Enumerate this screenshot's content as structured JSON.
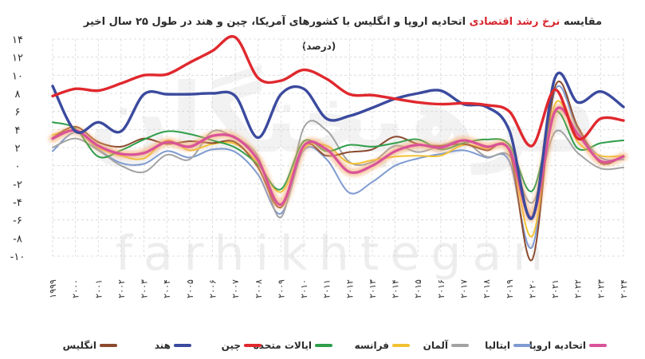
{
  "chart_data": {
    "type": "line",
    "title_parts": {
      "before": "مقایسه",
      "highlight": "نرخ رشد اقتصادی",
      "after": "اتحادیه اروپا و انگلیس با کشورهای آمریکا، چین و هند در طول ۲۵ سال اخیر"
    },
    "subtitle": "(درصد)",
    "watermark_fa": "فرهیختگان",
    "watermark_en": "farhikhtegan",
    "x": [
      "۱۹۹۹",
      "۲۰۰۰",
      "۲۰۰۱",
      "۲۰۰۲",
      "۲۰۰۳",
      "۲۰۰۴",
      "۲۰۰۵",
      "۲۰۰۶",
      "۲۰۰۷",
      "۲۰۰۸",
      "۲۰۰۹",
      "۲۰۱۰",
      "۲۰۱۱",
      "۲۰۱۲",
      "۲۰۱۳",
      "۲۰۱۴",
      "۲۰۱۵",
      "۲۰۱۶",
      "۲۰۱۷",
      "۲۰۱۸",
      "۲۰۱۹",
      "۲۰۲۰",
      "۲۰۲۱",
      "۲۰۲۲",
      "۲۰۲۳",
      "۲۰۲۴"
    ],
    "yticks": [
      {
        "value": 14,
        "label": "۱۴"
      },
      {
        "value": 12,
        "label": "۱۲"
      },
      {
        "value": 10,
        "label": "۱۰"
      },
      {
        "value": 8,
        "label": "۸"
      },
      {
        "value": 6,
        "label": "۶"
      },
      {
        "value": 4,
        "label": "۴"
      },
      {
        "value": 2,
        "label": "۲"
      },
      {
        "value": 0,
        "label": "۰"
      },
      {
        "value": -2,
        "label": "-۲"
      },
      {
        "value": -4,
        "label": "-۴"
      },
      {
        "value": -6,
        "label": "-۶"
      },
      {
        "value": -8,
        "label": "-۸"
      },
      {
        "value": -10,
        "label": "-۱۰"
      }
    ],
    "ylim": [
      -10,
      14
    ],
    "grid": true,
    "legend_position": "bottom",
    "series": [
      {
        "name": "اتحادیه اروپا",
        "color": "#d9539a",
        "glow": true,
        "values": [
          3.0,
          3.9,
          2.2,
          1.3,
          1.4,
          2.6,
          2.1,
          3.3,
          3.1,
          0.6,
          -4.3,
          2.2,
          1.8,
          -0.7,
          0.0,
          1.6,
          2.3,
          2.0,
          2.8,
          2.1,
          1.8,
          -5.7,
          6.0,
          3.5,
          0.5,
          1.0
        ]
      },
      {
        "name": "ایتالیا",
        "color": "#7f9bd1",
        "glow": false,
        "values": [
          1.6,
          3.7,
          1.8,
          0.3,
          0.2,
          1.6,
          0.9,
          1.8,
          1.5,
          -1.0,
          -5.3,
          1.7,
          0.7,
          -3.0,
          -1.8,
          0.0,
          0.8,
          1.3,
          1.7,
          0.9,
          0.5,
          -9.0,
          8.3,
          4.0,
          0.9,
          0.7
        ]
      },
      {
        "name": "آلمان",
        "color": "#a3a3a3",
        "glow": false,
        "values": [
          2.0,
          3.0,
          1.7,
          0.0,
          -0.7,
          1.2,
          0.7,
          3.8,
          3.0,
          1.0,
          -5.7,
          4.2,
          3.9,
          0.4,
          0.4,
          2.2,
          1.5,
          2.2,
          2.7,
          1.0,
          1.1,
          -4.1,
          3.7,
          1.4,
          -0.3,
          -0.2
        ]
      },
      {
        "name": "فرانسه",
        "color": "#f2c233",
        "glow": false,
        "values": [
          3.4,
          3.9,
          2.0,
          1.1,
          0.8,
          2.8,
          1.7,
          2.4,
          2.4,
          0.3,
          -2.9,
          1.9,
          2.2,
          0.3,
          0.6,
          1.0,
          1.1,
          1.1,
          2.3,
          1.9,
          1.8,
          -7.8,
          6.8,
          2.6,
          1.1,
          1.1
        ]
      },
      {
        "name": "ایالات متحده",
        "color": "#2e9e4a",
        "glow": false,
        "values": [
          4.8,
          4.1,
          1.0,
          1.7,
          2.9,
          3.8,
          3.5,
          2.8,
          2.0,
          0.1,
          -2.6,
          2.7,
          1.6,
          2.3,
          2.1,
          2.5,
          2.9,
          1.8,
          2.5,
          2.9,
          2.3,
          -2.8,
          5.9,
          1.9,
          2.5,
          2.8
        ]
      },
      {
        "name": "چین",
        "color": "#e0282e",
        "glow": false,
        "values": [
          7.7,
          8.5,
          8.3,
          9.1,
          10.0,
          10.1,
          11.4,
          12.7,
          14.2,
          9.7,
          9.4,
          10.6,
          9.6,
          7.9,
          7.8,
          7.4,
          7.0,
          6.8,
          6.9,
          6.7,
          6.0,
          2.2,
          8.4,
          3.0,
          5.2,
          5.0
        ]
      },
      {
        "name": "هند",
        "color": "#3b4a9e",
        "glow": false,
        "values": [
          8.8,
          3.8,
          4.8,
          3.8,
          7.9,
          7.9,
          7.9,
          8.0,
          7.7,
          3.1,
          7.9,
          8.5,
          5.2,
          5.5,
          6.4,
          7.4,
          8.0,
          8.3,
          6.8,
          6.5,
          3.9,
          -5.8,
          9.7,
          7.0,
          8.2,
          6.5
        ]
      },
      {
        "name": "انگلیس",
        "color": "#8b4a2e",
        "glow": false,
        "values": [
          3.1,
          4.3,
          2.6,
          2.1,
          3.0,
          2.4,
          2.7,
          2.5,
          2.6,
          -0.2,
          -4.6,
          2.2,
          1.1,
          1.5,
          1.8,
          3.2,
          2.4,
          2.2,
          2.4,
          1.7,
          1.6,
          -10.4,
          8.7,
          4.3,
          0.3,
          1.1
        ]
      }
    ]
  }
}
